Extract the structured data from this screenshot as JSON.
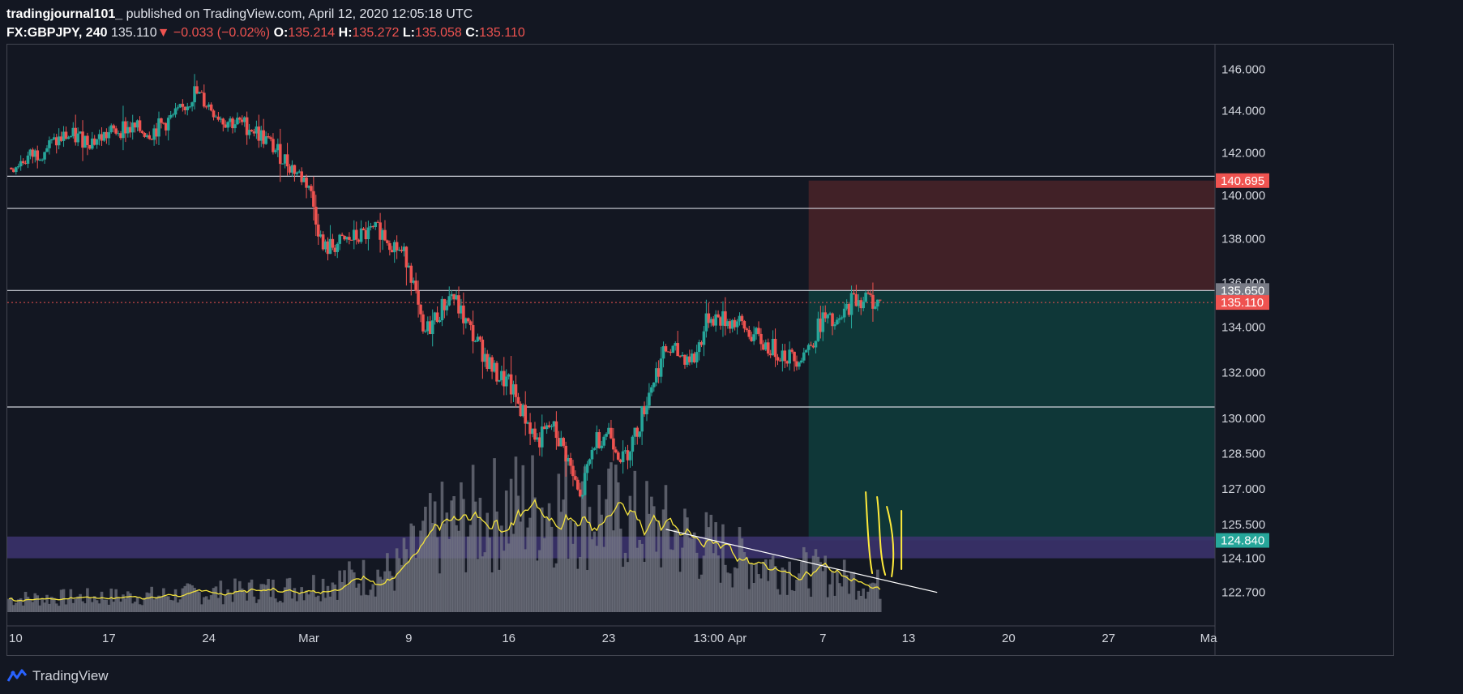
{
  "header": {
    "author": "tradingjournal101_",
    "published_text": "published on TradingView.com, April 12, 2020 12:05:18 UTC",
    "symbol": "FX:GBPJPY, 240",
    "last": "135.110",
    "change_arrow": "▼",
    "change": "−0.033 (−0.02%)",
    "o_label": "O:",
    "o": "135.214",
    "h_label": "H:",
    "h": "135.272",
    "l_label": "L:",
    "l": "135.058",
    "c_label": "C:",
    "c": "135.110"
  },
  "footer": {
    "brand": "TradingView",
    "logo_icon": "tradingview-logo-icon"
  },
  "colors": {
    "bull": "#26a69a",
    "bear": "#ef5350",
    "volume": "#787b86",
    "ma": "#f5e43c",
    "hline": "#d1d4dc",
    "stop_zone": "#4a2328",
    "target_zone": "#0f3b3b",
    "demand_zone": "#3d3470",
    "current_price": "#ef5350",
    "target_label": "#26a69a",
    "entry_label": "#787b86"
  },
  "chart_data": {
    "type": "candlestick",
    "y_scale": "log",
    "ylim": [
      121.9,
      147.2
    ],
    "price_ticks": [
      "146.000",
      "144.000",
      "142.000",
      "140.000",
      "138.000",
      "136.000",
      "134.000",
      "132.000",
      "130.000",
      "128.500",
      "127.000",
      "125.500",
      "124.100",
      "122.700"
    ],
    "time_ticks": [
      "10",
      "17",
      "24",
      "Mar",
      "9",
      "16",
      "23",
      "13:00",
      "Apr",
      "7",
      "13",
      "20",
      "27",
      "Ma"
    ],
    "horizontal_lines": [
      140.9,
      139.4,
      135.65,
      130.5
    ],
    "price_labels": [
      {
        "value": "140.695",
        "price": 140.695,
        "role": "stop"
      },
      {
        "value": "135.650",
        "price": 135.65,
        "role": "entry"
      },
      {
        "value": "135.110",
        "price": 135.11,
        "role": "current"
      },
      {
        "value": "124.840",
        "price": 124.84,
        "role": "target"
      }
    ],
    "position": {
      "type": "short",
      "entry": 135.65,
      "stop": 140.695,
      "target": 124.84,
      "start": "2020-04-06",
      "end": "2020-05-04"
    },
    "demand_zone": [
      124.1,
      125.0
    ],
    "trendline": [
      {
        "date": "2020-03-27",
        "price": 125.3
      },
      {
        "date": "2020-04-15",
        "price": 122.7
      }
    ],
    "annotations": "yellow hand-drawn strokes near 13 Apr",
    "price_path": [
      [
        "2020-02-10",
        141.3
      ],
      [
        "2020-02-12",
        142.0
      ],
      [
        "2020-02-14",
        142.8
      ],
      [
        "2020-02-16",
        142.6
      ],
      [
        "2020-02-18",
        143.2
      ],
      [
        "2020-02-20",
        143.0
      ],
      [
        "2020-02-22",
        143.9
      ],
      [
        "2020-02-23",
        144.9
      ],
      [
        "2020-02-25",
        143.6
      ],
      [
        "2020-02-27",
        143.2
      ],
      [
        "2020-02-28",
        142.6
      ],
      [
        "2020-03-02",
        140.5
      ],
      [
        "2020-03-03",
        137.5
      ],
      [
        "2020-03-05",
        138.0
      ],
      [
        "2020-03-07",
        138.4
      ],
      [
        "2020-03-09",
        137.0
      ],
      [
        "2020-03-10",
        133.6
      ],
      [
        "2020-03-12",
        135.5
      ],
      [
        "2020-03-13",
        134.2
      ],
      [
        "2020-03-15",
        132.0
      ],
      [
        "2020-03-16",
        131.5
      ],
      [
        "2020-03-18",
        129.0
      ],
      [
        "2020-03-19",
        129.7
      ],
      [
        "2020-03-20",
        128.5
      ],
      [
        "2020-03-21",
        126.5
      ],
      [
        "2020-03-22",
        129.0
      ],
      [
        "2020-03-23",
        129.5
      ],
      [
        "2020-03-24",
        128.2
      ],
      [
        "2020-03-25",
        129.5
      ],
      [
        "2020-03-26",
        131.5
      ],
      [
        "2020-03-27",
        133.0
      ],
      [
        "2020-03-29",
        132.6
      ],
      [
        "2020-03-30",
        134.5
      ],
      [
        "2020-04-01",
        134.2
      ],
      [
        "2020-04-03",
        133.2
      ],
      [
        "2020-04-05",
        132.6
      ],
      [
        "2020-04-06",
        133.1
      ],
      [
        "2020-04-07",
        134.4
      ],
      [
        "2020-04-08",
        134.0
      ],
      [
        "2020-04-09",
        135.2
      ],
      [
        "2020-04-10",
        135.3
      ],
      [
        "2020-04-11",
        135.11
      ]
    ],
    "volume_path": [
      [
        "2020-02-10",
        5
      ],
      [
        "2020-02-20",
        6
      ],
      [
        "2020-03-01",
        9
      ],
      [
        "2020-03-08",
        15
      ],
      [
        "2020-03-11",
        30
      ],
      [
        "2020-03-16",
        38
      ],
      [
        "2020-03-19",
        40
      ],
      [
        "2020-03-23",
        36
      ],
      [
        "2020-03-27",
        30
      ],
      [
        "2020-04-01",
        20
      ],
      [
        "2020-04-06",
        15
      ],
      [
        "2020-04-11",
        10
      ]
    ],
    "vol_max": 60
  }
}
